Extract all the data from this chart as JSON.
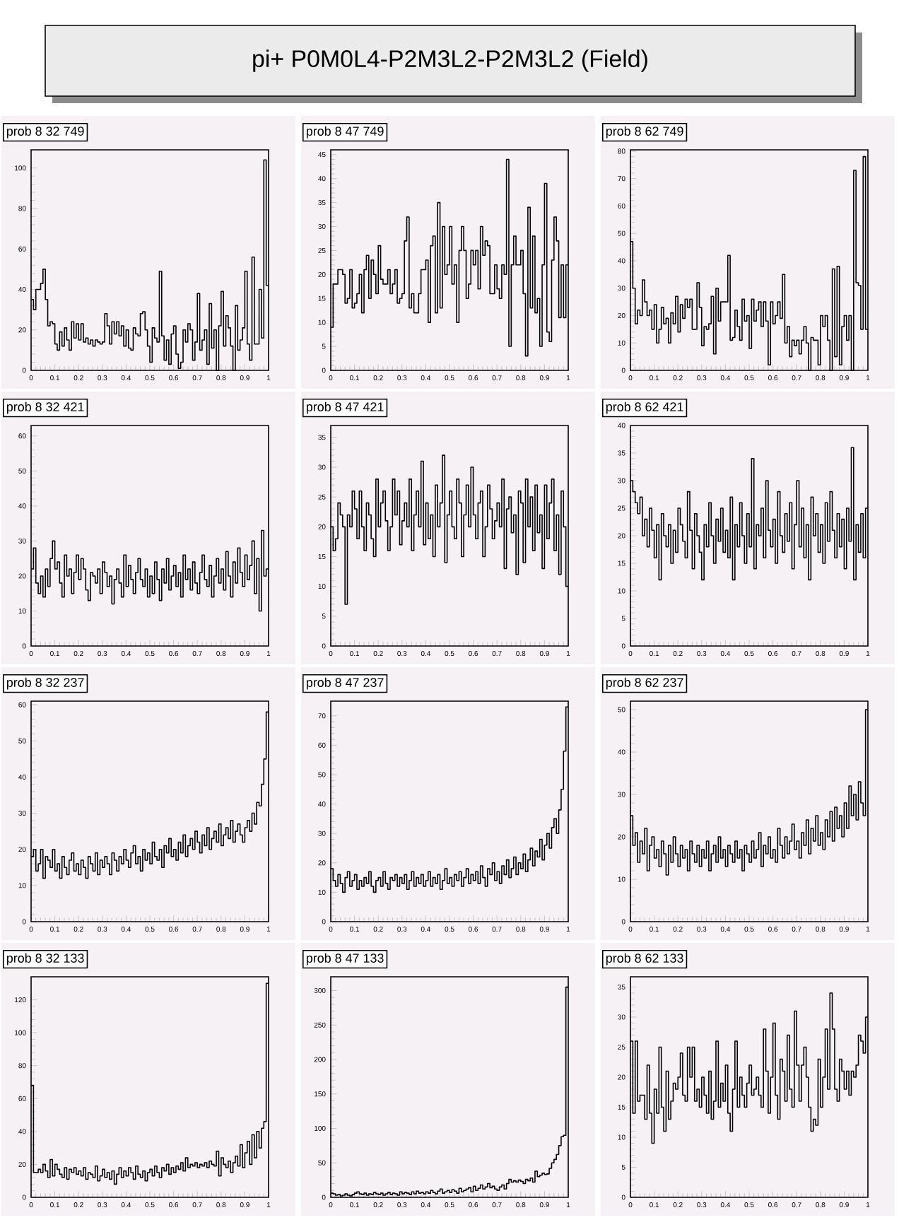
{
  "chart_data": [
    {
      "type": "other",
      "title": "pi+ P0M0L4-P2M3L2-P2M3L2 (Field)"
    },
    {
      "type": "histogram",
      "title": "prob 8 32 749",
      "color": "#000000",
      "xlim": [
        0,
        1
      ],
      "xticks": [
        0,
        0.1,
        0.2,
        0.3,
        0.4,
        0.5,
        0.6,
        0.7,
        0.8,
        0.9,
        1
      ],
      "ylim": [
        0,
        109
      ],
      "yticks": [
        0,
        20,
        40,
        60,
        80,
        100
      ],
      "bins": [
        0,
        0.01,
        0.02,
        0.03,
        0.04,
        0.05,
        0.06,
        0.07,
        0.08,
        0.09,
        0.1,
        0.11,
        0.12,
        0.13,
        0.14,
        0.15,
        0.16,
        0.17,
        0.18,
        0.19,
        0.2,
        0.21,
        0.22,
        0.23,
        0.24,
        0.25,
        0.26,
        0.27,
        0.28,
        0.29,
        0.3,
        0.31,
        0.32,
        0.33,
        0.34,
        0.35,
        0.36,
        0.37,
        0.38,
        0.39,
        0.4,
        0.41,
        0.42,
        0.43,
        0.44,
        0.45,
        0.46,
        0.47,
        0.48,
        0.49,
        0.5,
        0.51,
        0.52,
        0.53,
        0.54,
        0.55,
        0.56,
        0.57,
        0.58,
        0.59,
        0.6,
        0.61,
        0.62,
        0.63,
        0.64,
        0.65,
        0.66,
        0.67,
        0.68,
        0.69,
        0.7,
        0.71,
        0.72,
        0.73,
        0.74,
        0.75,
        0.76,
        0.77,
        0.78,
        0.79,
        0.8,
        0.81,
        0.82,
        0.83,
        0.84,
        0.85,
        0.86,
        0.87,
        0.88,
        0.89,
        0.9,
        0.91,
        0.92,
        0.93,
        0.94,
        0.95,
        0.96,
        0.97,
        0.98,
        0.99,
        1
      ],
      "values": [
        35,
        30,
        40,
        40,
        43,
        50,
        35,
        22,
        24,
        23,
        13,
        10,
        19,
        12,
        21,
        15,
        10,
        24,
        16,
        23,
        15,
        23,
        14,
        16,
        13,
        15,
        12,
        15,
        14,
        13,
        14,
        28,
        22,
        13,
        24,
        18,
        24,
        17,
        22,
        12,
        20,
        11,
        10,
        21,
        18,
        17,
        28,
        29,
        20,
        12,
        4,
        21,
        16,
        14,
        49,
        17,
        5,
        15,
        3,
        18,
        22,
        8,
        1,
        4,
        20,
        14,
        23,
        20,
        5,
        14,
        38,
        10,
        15,
        20,
        3,
        33,
        11,
        20,
        0,
        22,
        39,
        12,
        27,
        21,
        12,
        0,
        32,
        10,
        15,
        21,
        49,
        13,
        5,
        56,
        13,
        13,
        40,
        16,
        104,
        42
      ]
    },
    {
      "type": "histogram",
      "title": "prob 8 47 749",
      "color": "#000000",
      "xlim": [
        0,
        1
      ],
      "xticks": [
        0,
        0.1,
        0.2,
        0.3,
        0.4,
        0.5,
        0.6,
        0.7,
        0.8,
        0.9,
        1
      ],
      "ylim": [
        0,
        46
      ],
      "yticks": [
        0,
        5,
        10,
        15,
        20,
        25,
        30,
        35,
        40,
        45
      ],
      "bins": [
        0,
        0.01,
        0.02,
        0.03,
        0.04,
        0.05,
        0.06,
        0.07,
        0.08,
        0.09,
        0.1,
        0.11,
        0.12,
        0.13,
        0.14,
        0.15,
        0.16,
        0.17,
        0.18,
        0.19,
        0.2,
        0.21,
        0.22,
        0.23,
        0.24,
        0.25,
        0.26,
        0.27,
        0.28,
        0.29,
        0.3,
        0.31,
        0.32,
        0.33,
        0.34,
        0.35,
        0.36,
        0.37,
        0.38,
        0.39,
        0.4,
        0.41,
        0.42,
        0.43,
        0.44,
        0.45,
        0.46,
        0.47,
        0.48,
        0.49,
        0.5,
        0.51,
        0.52,
        0.53,
        0.54,
        0.55,
        0.56,
        0.57,
        0.58,
        0.59,
        0.6,
        0.61,
        0.62,
        0.63,
        0.64,
        0.65,
        0.66,
        0.67,
        0.68,
        0.69,
        0.7,
        0.71,
        0.72,
        0.73,
        0.74,
        0.75,
        0.76,
        0.77,
        0.78,
        0.79,
        0.8,
        0.81,
        0.82,
        0.83,
        0.84,
        0.85,
        0.86,
        0.87,
        0.88,
        0.89,
        0.9,
        0.91,
        0.92,
        0.93,
        0.94,
        0.95,
        0.96,
        0.97,
        0.98,
        0.99,
        1
      ],
      "values": [
        9,
        18,
        18,
        21,
        21,
        20,
        14,
        15,
        21,
        13,
        14,
        16,
        20,
        12,
        21,
        24,
        15,
        23,
        20,
        16,
        26,
        19,
        18,
        18,
        21,
        16,
        18,
        21,
        14,
        15,
        16,
        27,
        32,
        13,
        16,
        12,
        12,
        16,
        21,
        21,
        23,
        10,
        26,
        28,
        12,
        35,
        13,
        30,
        20,
        22,
        30,
        18,
        22,
        10,
        25,
        30,
        25,
        15,
        18,
        25,
        22,
        25,
        17,
        30,
        24,
        27,
        26,
        16,
        16,
        22,
        17,
        15,
        22,
        20,
        44,
        5,
        22,
        28,
        22,
        22,
        25,
        16,
        3,
        34,
        13,
        28,
        12,
        15,
        5,
        22,
        39,
        8,
        6,
        23,
        32,
        27,
        11,
        22,
        11,
        22
      ]
    },
    {
      "type": "histogram",
      "title": "prob 8 62 749",
      "color": "#000000",
      "xlim": [
        0,
        1
      ],
      "xticks": [
        0,
        0.1,
        0.2,
        0.3,
        0.4,
        0.5,
        0.6,
        0.7,
        0.8,
        0.9,
        1
      ],
      "ylim": [
        0,
        80.5
      ],
      "yticks": [
        0,
        10,
        20,
        30,
        40,
        50,
        60,
        70,
        80
      ],
      "bins": [
        0,
        0.01,
        0.02,
        0.03,
        0.04,
        0.05,
        0.06,
        0.07,
        0.08,
        0.09,
        0.1,
        0.11,
        0.12,
        0.13,
        0.14,
        0.15,
        0.16,
        0.17,
        0.18,
        0.19,
        0.2,
        0.21,
        0.22,
        0.23,
        0.24,
        0.25,
        0.26,
        0.27,
        0.28,
        0.29,
        0.3,
        0.31,
        0.32,
        0.33,
        0.34,
        0.35,
        0.36,
        0.37,
        0.38,
        0.39,
        0.4,
        0.41,
        0.42,
        0.43,
        0.44,
        0.45,
        0.46,
        0.47,
        0.48,
        0.49,
        0.5,
        0.51,
        0.52,
        0.53,
        0.54,
        0.55,
        0.56,
        0.57,
        0.58,
        0.59,
        0.6,
        0.61,
        0.62,
        0.63,
        0.64,
        0.65,
        0.66,
        0.67,
        0.68,
        0.69,
        0.7,
        0.71,
        0.72,
        0.73,
        0.74,
        0.75,
        0.76,
        0.77,
        0.78,
        0.79,
        0.8,
        0.81,
        0.82,
        0.83,
        0.84,
        0.85,
        0.86,
        0.87,
        0.88,
        0.89,
        0.9,
        0.91,
        0.92,
        0.93,
        0.94,
        0.95,
        0.96,
        0.97,
        0.98,
        0.99,
        1
      ],
      "values": [
        47,
        30,
        17,
        22,
        20,
        33,
        25,
        20,
        22,
        15,
        24,
        10,
        15,
        23,
        17,
        19,
        10,
        21,
        17,
        27,
        14,
        24,
        19,
        26,
        23,
        26,
        15,
        15,
        32,
        23,
        9,
        16,
        15,
        17,
        27,
        6,
        30,
        18,
        25,
        25,
        25,
        42,
        11,
        12,
        22,
        16,
        11,
        26,
        18,
        20,
        8,
        26,
        18,
        22,
        25,
        16,
        25,
        18,
        2,
        25,
        17,
        20,
        25,
        19,
        35,
        10,
        16,
        5,
        11,
        9,
        11,
        6,
        11,
        16,
        10,
        0,
        12,
        11,
        11,
        2,
        20,
        16,
        20,
        11,
        0,
        37,
        5,
        38,
        2,
        16,
        20,
        11,
        20,
        0,
        73,
        32,
        31,
        15,
        78,
        15
      ]
    },
    {
      "type": "histogram",
      "title": "prob 8 32 421",
      "color": "#000000",
      "xlim": [
        0,
        1
      ],
      "xticks": [
        0,
        0.1,
        0.2,
        0.3,
        0.4,
        0.5,
        0.6,
        0.7,
        0.8,
        0.9,
        1
      ],
      "ylim": [
        0,
        63
      ],
      "yticks": [
        0,
        10,
        20,
        30,
        40,
        50,
        60
      ],
      "bins": [
        0,
        0.01,
        0.02,
        0.03,
        0.04,
        0.05,
        0.06,
        0.07,
        0.08,
        0.09,
        0.1,
        0.11,
        0.12,
        0.13,
        0.14,
        0.15,
        0.16,
        0.17,
        0.18,
        0.19,
        0.2,
        0.21,
        0.22,
        0.23,
        0.24,
        0.25,
        0.26,
        0.27,
        0.28,
        0.29,
        0.3,
        0.31,
        0.32,
        0.33,
        0.34,
        0.35,
        0.36,
        0.37,
        0.38,
        0.39,
        0.4,
        0.41,
        0.42,
        0.43,
        0.44,
        0.45,
        0.46,
        0.47,
        0.48,
        0.49,
        0.5,
        0.51,
        0.52,
        0.53,
        0.54,
        0.55,
        0.56,
        0.57,
        0.58,
        0.59,
        0.6,
        0.61,
        0.62,
        0.63,
        0.64,
        0.65,
        0.66,
        0.67,
        0.68,
        0.69,
        0.7,
        0.71,
        0.72,
        0.73,
        0.74,
        0.75,
        0.76,
        0.77,
        0.78,
        0.79,
        0.8,
        0.81,
        0.82,
        0.83,
        0.84,
        0.85,
        0.86,
        0.87,
        0.88,
        0.89,
        0.9,
        0.91,
        0.92,
        0.93,
        0.94,
        0.95,
        0.96,
        0.97,
        0.98,
        0.99,
        1
      ],
      "values": [
        22,
        28,
        18,
        15,
        20,
        14,
        22,
        17,
        25,
        30,
        22,
        24,
        18,
        14,
        26,
        20,
        22,
        15,
        21,
        26,
        19,
        25,
        22,
        16,
        13,
        21,
        20,
        18,
        22,
        15,
        24,
        21,
        17,
        20,
        12,
        19,
        22,
        18,
        14,
        26,
        17,
        23,
        19,
        15,
        21,
        25,
        19,
        17,
        22,
        14,
        20,
        15,
        24,
        19,
        13,
        22,
        18,
        25,
        16,
        20,
        23,
        17,
        21,
        14,
        26,
        19,
        22,
        16,
        24,
        18,
        15,
        21,
        26,
        19,
        17,
        23,
        14,
        20,
        25,
        18,
        22,
        16,
        27,
        20,
        14,
        24,
        18,
        28,
        21,
        17,
        26,
        19,
        23,
        30,
        15,
        25,
        10,
        33,
        20,
        22
      ]
    },
    {
      "type": "histogram",
      "title": "prob 8 47 421",
      "color": "#000000",
      "xlim": [
        0,
        1
      ],
      "xticks": [
        0,
        0.1,
        0.2,
        0.3,
        0.4,
        0.5,
        0.6,
        0.7,
        0.8,
        0.9,
        1
      ],
      "ylim": [
        0,
        37
      ],
      "yticks": [
        0,
        5,
        10,
        15,
        20,
        25,
        30,
        35
      ],
      "bins": [
        0,
        0.01,
        0.02,
        0.03,
        0.04,
        0.05,
        0.06,
        0.07,
        0.08,
        0.09,
        0.1,
        0.11,
        0.12,
        0.13,
        0.14,
        0.15,
        0.16,
        0.17,
        0.18,
        0.19,
        0.2,
        0.21,
        0.22,
        0.23,
        0.24,
        0.25,
        0.26,
        0.27,
        0.28,
        0.29,
        0.3,
        0.31,
        0.32,
        0.33,
        0.34,
        0.35,
        0.36,
        0.37,
        0.38,
        0.39,
        0.4,
        0.41,
        0.42,
        0.43,
        0.44,
        0.45,
        0.46,
        0.47,
        0.48,
        0.49,
        0.5,
        0.51,
        0.52,
        0.53,
        0.54,
        0.55,
        0.56,
        0.57,
        0.58,
        0.59,
        0.6,
        0.61,
        0.62,
        0.63,
        0.64,
        0.65,
        0.66,
        0.67,
        0.68,
        0.69,
        0.7,
        0.71,
        0.72,
        0.73,
        0.74,
        0.75,
        0.76,
        0.77,
        0.78,
        0.79,
        0.8,
        0.81,
        0.82,
        0.83,
        0.84,
        0.85,
        0.86,
        0.87,
        0.88,
        0.89,
        0.9,
        0.91,
        0.92,
        0.93,
        0.94,
        0.95,
        0.96,
        0.97,
        0.98,
        0.99,
        1
      ],
      "values": [
        20,
        16,
        18,
        24,
        22,
        20,
        7,
        22,
        20,
        26,
        23,
        18,
        26,
        20,
        16,
        24,
        22,
        18,
        15,
        28,
        20,
        24,
        26,
        21,
        16,
        20,
        28,
        22,
        26,
        17,
        21,
        24,
        20,
        28,
        16,
        22,
        26,
        20,
        31,
        17,
        24,
        18,
        22,
        15,
        27,
        20,
        24,
        32,
        14,
        22,
        26,
        20,
        18,
        28,
        24,
        15,
        22,
        27,
        20,
        30,
        22,
        18,
        24,
        26,
        15,
        20,
        27,
        23,
        18,
        21,
        24,
        20,
        28,
        13,
        23,
        25,
        19,
        22,
        12,
        26,
        24,
        14,
        28,
        20,
        25,
        16,
        27,
        19,
        22,
        13,
        27,
        18,
        24,
        28,
        16,
        22,
        12,
        26,
        20,
        10
      ]
    },
    {
      "type": "histogram",
      "title": "prob 8 62 421",
      "color": "#000000",
      "xlim": [
        0,
        1
      ],
      "xticks": [
        0,
        0.1,
        0.2,
        0.3,
        0.4,
        0.5,
        0.6,
        0.7,
        0.8,
        0.9,
        1
      ],
      "ylim": [
        0,
        40
      ],
      "yticks": [
        0,
        5,
        10,
        15,
        20,
        25,
        30,
        35,
        40
      ],
      "bins": [
        0,
        0.01,
        0.02,
        0.03,
        0.04,
        0.05,
        0.06,
        0.07,
        0.08,
        0.09,
        0.1,
        0.11,
        0.12,
        0.13,
        0.14,
        0.15,
        0.16,
        0.17,
        0.18,
        0.19,
        0.2,
        0.21,
        0.22,
        0.23,
        0.24,
        0.25,
        0.26,
        0.27,
        0.28,
        0.29,
        0.3,
        0.31,
        0.32,
        0.33,
        0.34,
        0.35,
        0.36,
        0.37,
        0.38,
        0.39,
        0.4,
        0.41,
        0.42,
        0.43,
        0.44,
        0.45,
        0.46,
        0.47,
        0.48,
        0.49,
        0.5,
        0.51,
        0.52,
        0.53,
        0.54,
        0.55,
        0.56,
        0.57,
        0.58,
        0.59,
        0.6,
        0.61,
        0.62,
        0.63,
        0.64,
        0.65,
        0.66,
        0.67,
        0.68,
        0.69,
        0.7,
        0.71,
        0.72,
        0.73,
        0.74,
        0.75,
        0.76,
        0.77,
        0.78,
        0.79,
        0.8,
        0.81,
        0.82,
        0.83,
        0.84,
        0.85,
        0.86,
        0.87,
        0.88,
        0.89,
        0.9,
        0.91,
        0.92,
        0.93,
        0.94,
        0.95,
        0.96,
        0.97,
        0.98,
        0.99,
        1
      ],
      "values": [
        30,
        28,
        26,
        24,
        27,
        20,
        23,
        18,
        25,
        21,
        16,
        22,
        12,
        24,
        20,
        18,
        22,
        15,
        21,
        17,
        25,
        22,
        19,
        16,
        28,
        21,
        14,
        24,
        20,
        17,
        12,
        22,
        18,
        26,
        20,
        15,
        23,
        19,
        25,
        17,
        21,
        16,
        27,
        12,
        22,
        18,
        26,
        20,
        15,
        24,
        18,
        34,
        14,
        22,
        20,
        25,
        16,
        30,
        21,
        18,
        23,
        15,
        28,
        20,
        17,
        24,
        19,
        26,
        14,
        22,
        30,
        18,
        25,
        16,
        22,
        12,
        27,
        20,
        24,
        17,
        22,
        15,
        26,
        19,
        28,
        21,
        16,
        24,
        18,
        23,
        14,
        25,
        19,
        36,
        12,
        22,
        17,
        24,
        16,
        25
      ]
    },
    {
      "type": "histogram",
      "title": "prob 8 32 237",
      "color": "#000000",
      "xlim": [
        0,
        1
      ],
      "xticks": [
        0,
        0.1,
        0.2,
        0.3,
        0.4,
        0.5,
        0.6,
        0.7,
        0.8,
        0.9,
        1
      ],
      "ylim": [
        0,
        61
      ],
      "yticks": [
        0,
        10,
        20,
        30,
        40,
        50,
        60
      ],
      "bins": [
        0,
        0.01,
        0.02,
        0.03,
        0.04,
        0.05,
        0.06,
        0.07,
        0.08,
        0.09,
        0.1,
        0.11,
        0.12,
        0.13,
        0.14,
        0.15,
        0.16,
        0.17,
        0.18,
        0.19,
        0.2,
        0.21,
        0.22,
        0.23,
        0.24,
        0.25,
        0.26,
        0.27,
        0.28,
        0.29,
        0.3,
        0.31,
        0.32,
        0.33,
        0.34,
        0.35,
        0.36,
        0.37,
        0.38,
        0.39,
        0.4,
        0.41,
        0.42,
        0.43,
        0.44,
        0.45,
        0.46,
        0.47,
        0.48,
        0.49,
        0.5,
        0.51,
        0.52,
        0.53,
        0.54,
        0.55,
        0.56,
        0.57,
        0.58,
        0.59,
        0.6,
        0.61,
        0.62,
        0.63,
        0.64,
        0.65,
        0.66,
        0.67,
        0.68,
        0.69,
        0.7,
        0.71,
        0.72,
        0.73,
        0.74,
        0.75,
        0.76,
        0.77,
        0.78,
        0.79,
        0.8,
        0.81,
        0.82,
        0.83,
        0.84,
        0.85,
        0.86,
        0.87,
        0.88,
        0.89,
        0.9,
        0.91,
        0.92,
        0.93,
        0.94,
        0.95,
        0.96,
        0.97,
        0.98,
        0.99,
        1
      ],
      "values": [
        18,
        20,
        14,
        16,
        20,
        12,
        18,
        17,
        15,
        20,
        14,
        16,
        12,
        18,
        15,
        13,
        17,
        19,
        14,
        16,
        13,
        17,
        15,
        12,
        18,
        16,
        14,
        19,
        13,
        17,
        15,
        18,
        16,
        13,
        19,
        17,
        14,
        18,
        16,
        20,
        17,
        15,
        19,
        21,
        16,
        18,
        14,
        20,
        17,
        19,
        16,
        22,
        18,
        17,
        20,
        15,
        21,
        19,
        23,
        18,
        20,
        17,
        22,
        19,
        24,
        18,
        21,
        23,
        20,
        25,
        22,
        19,
        24,
        21,
        26,
        20,
        23,
        25,
        22,
        27,
        21,
        24,
        26,
        23,
        28,
        22,
        25,
        27,
        24,
        22,
        26,
        28,
        25,
        30,
        27,
        33,
        32,
        38,
        45,
        58
      ]
    },
    {
      "type": "histogram",
      "title": "prob 8 47 237",
      "color": "#000000",
      "xlim": [
        0,
        1
      ],
      "xticks": [
        0,
        0.1,
        0.2,
        0.3,
        0.4,
        0.5,
        0.6,
        0.7,
        0.8,
        0.9,
        1
      ],
      "ylim": [
        0,
        75
      ],
      "yticks": [
        0,
        10,
        20,
        30,
        40,
        50,
        60,
        70
      ],
      "bins": [
        0,
        0.01,
        0.02,
        0.03,
        0.04,
        0.05,
        0.06,
        0.07,
        0.08,
        0.09,
        0.1,
        0.11,
        0.12,
        0.13,
        0.14,
        0.15,
        0.16,
        0.17,
        0.18,
        0.19,
        0.2,
        0.21,
        0.22,
        0.23,
        0.24,
        0.25,
        0.26,
        0.27,
        0.28,
        0.29,
        0.3,
        0.31,
        0.32,
        0.33,
        0.34,
        0.35,
        0.36,
        0.37,
        0.38,
        0.39,
        0.4,
        0.41,
        0.42,
        0.43,
        0.44,
        0.45,
        0.46,
        0.47,
        0.48,
        0.49,
        0.5,
        0.51,
        0.52,
        0.53,
        0.54,
        0.55,
        0.56,
        0.57,
        0.58,
        0.59,
        0.6,
        0.61,
        0.62,
        0.63,
        0.64,
        0.65,
        0.66,
        0.67,
        0.68,
        0.69,
        0.7,
        0.71,
        0.72,
        0.73,
        0.74,
        0.75,
        0.76,
        0.77,
        0.78,
        0.79,
        0.8,
        0.81,
        0.82,
        0.83,
        0.84,
        0.85,
        0.86,
        0.87,
        0.88,
        0.89,
        0.9,
        0.91,
        0.92,
        0.93,
        0.94,
        0.95,
        0.96,
        0.97,
        0.98,
        0.99,
        1
      ],
      "values": [
        18,
        14,
        12,
        16,
        13,
        10,
        15,
        17,
        12,
        14,
        16,
        11,
        14,
        12,
        15,
        13,
        17,
        12,
        10,
        14,
        15,
        12,
        17,
        13,
        11,
        15,
        14,
        16,
        12,
        15,
        13,
        16,
        11,
        14,
        17,
        12,
        15,
        13,
        16,
        12,
        14,
        17,
        12,
        15,
        13,
        16,
        11,
        14,
        18,
        13,
        15,
        12,
        16,
        14,
        17,
        12,
        15,
        18,
        13,
        16,
        14,
        17,
        13,
        19,
        15,
        12,
        18,
        16,
        20,
        14,
        17,
        13,
        19,
        16,
        21,
        15,
        18,
        22,
        16,
        20,
        18,
        23,
        17,
        21,
        25,
        19,
        24,
        22,
        28,
        21,
        26,
        30,
        25,
        32,
        35,
        30,
        38,
        45,
        58,
        73
      ]
    },
    {
      "type": "histogram",
      "title": "prob 8 62 237",
      "color": "#000000",
      "xlim": [
        0,
        1
      ],
      "xticks": [
        0,
        0.1,
        0.2,
        0.3,
        0.4,
        0.5,
        0.6,
        0.7,
        0.8,
        0.9,
        1
      ],
      "ylim": [
        0,
        52
      ],
      "yticks": [
        0,
        10,
        20,
        30,
        40,
        50
      ],
      "bins": [
        0,
        0.01,
        0.02,
        0.03,
        0.04,
        0.05,
        0.06,
        0.07,
        0.08,
        0.09,
        0.1,
        0.11,
        0.12,
        0.13,
        0.14,
        0.15,
        0.16,
        0.17,
        0.18,
        0.19,
        0.2,
        0.21,
        0.22,
        0.23,
        0.24,
        0.25,
        0.26,
        0.27,
        0.28,
        0.29,
        0.3,
        0.31,
        0.32,
        0.33,
        0.34,
        0.35,
        0.36,
        0.37,
        0.38,
        0.39,
        0.4,
        0.41,
        0.42,
        0.43,
        0.44,
        0.45,
        0.46,
        0.47,
        0.48,
        0.49,
        0.5,
        0.51,
        0.52,
        0.53,
        0.54,
        0.55,
        0.56,
        0.57,
        0.58,
        0.59,
        0.6,
        0.61,
        0.62,
        0.63,
        0.64,
        0.65,
        0.66,
        0.67,
        0.68,
        0.69,
        0.7,
        0.71,
        0.72,
        0.73,
        0.74,
        0.75,
        0.76,
        0.77,
        0.78,
        0.79,
        0.8,
        0.81,
        0.82,
        0.83,
        0.84,
        0.85,
        0.86,
        0.87,
        0.88,
        0.89,
        0.9,
        0.91,
        0.92,
        0.93,
        0.94,
        0.95,
        0.96,
        0.97,
        0.98,
        0.99,
        1
      ],
      "values": [
        25,
        18,
        21,
        14,
        19,
        16,
        22,
        12,
        18,
        20,
        15,
        17,
        13,
        19,
        16,
        11,
        18,
        14,
        20,
        16,
        13,
        18,
        15,
        17,
        12,
        19,
        16,
        14,
        18,
        13,
        17,
        15,
        19,
        12,
        16,
        18,
        14,
        20,
        15,
        17,
        13,
        18,
        16,
        14,
        19,
        15,
        17,
        12,
        18,
        16,
        14,
        19,
        15,
        17,
        21,
        13,
        18,
        16,
        20,
        15,
        17,
        14,
        22,
        18,
        15,
        20,
        16,
        19,
        23,
        17,
        19,
        15,
        21,
        18,
        24,
        16,
        22,
        19,
        25,
        18,
        21,
        17,
        24,
        20,
        26,
        19,
        27,
        22,
        25,
        20,
        28,
        22,
        32,
        25,
        30,
        24,
        33,
        28,
        25,
        50
      ]
    },
    {
      "type": "histogram",
      "title": "prob 8 32 133",
      "color": "#000000",
      "xlim": [
        0,
        1
      ],
      "xticks": [
        0,
        0.1,
        0.2,
        0.3,
        0.4,
        0.5,
        0.6,
        0.7,
        0.8,
        0.9,
        1
      ],
      "ylim": [
        0,
        134
      ],
      "yticks": [
        0,
        20,
        40,
        60,
        80,
        100,
        120
      ],
      "bins": [
        0,
        0.01,
        0.02,
        0.03,
        0.04,
        0.05,
        0.06,
        0.07,
        0.08,
        0.09,
        0.1,
        0.11,
        0.12,
        0.13,
        0.14,
        0.15,
        0.16,
        0.17,
        0.18,
        0.19,
        0.2,
        0.21,
        0.22,
        0.23,
        0.24,
        0.25,
        0.26,
        0.27,
        0.28,
        0.29,
        0.3,
        0.31,
        0.32,
        0.33,
        0.34,
        0.35,
        0.36,
        0.37,
        0.38,
        0.39,
        0.4,
        0.41,
        0.42,
        0.43,
        0.44,
        0.45,
        0.46,
        0.47,
        0.48,
        0.49,
        0.5,
        0.51,
        0.52,
        0.53,
        0.54,
        0.55,
        0.56,
        0.57,
        0.58,
        0.59,
        0.6,
        0.61,
        0.62,
        0.63,
        0.64,
        0.65,
        0.66,
        0.67,
        0.68,
        0.69,
        0.7,
        0.71,
        0.72,
        0.73,
        0.74,
        0.75,
        0.76,
        0.77,
        0.78,
        0.79,
        0.8,
        0.81,
        0.82,
        0.83,
        0.84,
        0.85,
        0.86,
        0.87,
        0.88,
        0.89,
        0.9,
        0.91,
        0.92,
        0.93,
        0.94,
        0.95,
        0.96,
        0.97,
        0.98,
        0.99,
        1
      ],
      "values": [
        68,
        15,
        15,
        17,
        15,
        20,
        16,
        12,
        23,
        13,
        20,
        17,
        14,
        12,
        18,
        11,
        17,
        15,
        18,
        14,
        16,
        13,
        18,
        11,
        15,
        14,
        12,
        19,
        10,
        13,
        17,
        12,
        15,
        11,
        16,
        8,
        14,
        18,
        12,
        16,
        13,
        18,
        15,
        11,
        19,
        14,
        12,
        16,
        10,
        15,
        17,
        13,
        19,
        15,
        12,
        18,
        16,
        20,
        14,
        18,
        15,
        19,
        17,
        21,
        16,
        24,
        18,
        20,
        19,
        21,
        18,
        20,
        19,
        21,
        18,
        22,
        20,
        19,
        28,
        13,
        24,
        20,
        18,
        22,
        15,
        21,
        25,
        19,
        32,
        18,
        27,
        34,
        20,
        38,
        24,
        40,
        30,
        42,
        46,
        130
      ]
    },
    {
      "type": "histogram",
      "title": "prob 8 47 133",
      "color": "#000000",
      "xlim": [
        0,
        1
      ],
      "xticks": [
        0,
        0.1,
        0.2,
        0.3,
        0.4,
        0.5,
        0.6,
        0.7,
        0.8,
        0.9,
        1
      ],
      "ylim": [
        0,
        320
      ],
      "yticks": [
        0,
        50,
        100,
        150,
        200,
        250,
        300
      ],
      "bins": [
        0,
        0.01,
        0.02,
        0.03,
        0.04,
        0.05,
        0.06,
        0.07,
        0.08,
        0.09,
        0.1,
        0.11,
        0.12,
        0.13,
        0.14,
        0.15,
        0.16,
        0.17,
        0.18,
        0.19,
        0.2,
        0.21,
        0.22,
        0.23,
        0.24,
        0.25,
        0.26,
        0.27,
        0.28,
        0.29,
        0.3,
        0.31,
        0.32,
        0.33,
        0.34,
        0.35,
        0.36,
        0.37,
        0.38,
        0.39,
        0.4,
        0.41,
        0.42,
        0.43,
        0.44,
        0.45,
        0.46,
        0.47,
        0.48,
        0.49,
        0.5,
        0.51,
        0.52,
        0.53,
        0.54,
        0.55,
        0.56,
        0.57,
        0.58,
        0.59,
        0.6,
        0.61,
        0.62,
        0.63,
        0.64,
        0.65,
        0.66,
        0.67,
        0.68,
        0.69,
        0.7,
        0.71,
        0.72,
        0.73,
        0.74,
        0.75,
        0.76,
        0.77,
        0.78,
        0.79,
        0.8,
        0.81,
        0.82,
        0.83,
        0.84,
        0.85,
        0.86,
        0.87,
        0.88,
        0.89,
        0.9,
        0.91,
        0.92,
        0.93,
        0.94,
        0.95,
        0.96,
        0.97,
        0.98,
        0.99,
        1
      ],
      "values": [
        6,
        5,
        3,
        4,
        2,
        3,
        5,
        3,
        2,
        4,
        6,
        8,
        5,
        4,
        6,
        3,
        5,
        4,
        7,
        5,
        4,
        6,
        3,
        5,
        7,
        4,
        6,
        5,
        3,
        8,
        5,
        7,
        6,
        4,
        8,
        5,
        9,
        6,
        7,
        5,
        8,
        6,
        10,
        7,
        5,
        9,
        12,
        6,
        8,
        10,
        7,
        11,
        9,
        6,
        13,
        8,
        10,
        12,
        14,
        8,
        16,
        10,
        13,
        18,
        12,
        15,
        20,
        14,
        16,
        12,
        10,
        15,
        18,
        12,
        20,
        26,
        22,
        24,
        22,
        25,
        23,
        20,
        26,
        24,
        28,
        22,
        38,
        30,
        32,
        35,
        33,
        34,
        42,
        50,
        55,
        62,
        75,
        88,
        90,
        305
      ]
    },
    {
      "type": "histogram",
      "title": "prob 8 62 133",
      "color": "#000000",
      "xlim": [
        0,
        1
      ],
      "xticks": [
        0,
        0.1,
        0.2,
        0.3,
        0.4,
        0.5,
        0.6,
        0.7,
        0.8,
        0.9,
        1
      ],
      "ylim": [
        0,
        36.7
      ],
      "yticks": [
        0,
        5,
        10,
        15,
        20,
        25,
        30,
        35
      ],
      "bins": [
        0,
        0.01,
        0.02,
        0.03,
        0.04,
        0.05,
        0.06,
        0.07,
        0.08,
        0.09,
        0.1,
        0.11,
        0.12,
        0.13,
        0.14,
        0.15,
        0.16,
        0.17,
        0.18,
        0.19,
        0.2,
        0.21,
        0.22,
        0.23,
        0.24,
        0.25,
        0.26,
        0.27,
        0.28,
        0.29,
        0.3,
        0.31,
        0.32,
        0.33,
        0.34,
        0.35,
        0.36,
        0.37,
        0.38,
        0.39,
        0.4,
        0.41,
        0.42,
        0.43,
        0.44,
        0.45,
        0.46,
        0.47,
        0.48,
        0.49,
        0.5,
        0.51,
        0.52,
        0.53,
        0.54,
        0.55,
        0.56,
        0.57,
        0.58,
        0.59,
        0.6,
        0.61,
        0.62,
        0.63,
        0.64,
        0.65,
        0.66,
        0.67,
        0.68,
        0.69,
        0.7,
        0.71,
        0.72,
        0.73,
        0.74,
        0.75,
        0.76,
        0.77,
        0.78,
        0.79,
        0.8,
        0.81,
        0.82,
        0.83,
        0.84,
        0.85,
        0.86,
        0.87,
        0.88,
        0.89,
        0.9,
        0.91,
        0.92,
        0.93,
        0.94,
        0.95,
        0.96,
        0.97,
        0.98,
        0.99,
        1
      ],
      "values": [
        26,
        14,
        26,
        16,
        17,
        17,
        13,
        22,
        14,
        9,
        18,
        14,
        25,
        15,
        11,
        21,
        13,
        16,
        19,
        18,
        20,
        24,
        17,
        16,
        25,
        20,
        25,
        16,
        18,
        15,
        20,
        17,
        14,
        21,
        13,
        16,
        26,
        15,
        19,
        16,
        22,
        14,
        11,
        18,
        26,
        15,
        20,
        17,
        15,
        19,
        22,
        17,
        18,
        20,
        17,
        15,
        28,
        21,
        14,
        20,
        29,
        17,
        13,
        23,
        21,
        16,
        27,
        18,
        15,
        31,
        22,
        16,
        22,
        25,
        20,
        15,
        11,
        13,
        12,
        23,
        15,
        20,
        28,
        18,
        34,
        28,
        18,
        16,
        23,
        21,
        18,
        21,
        17,
        21,
        20,
        22,
        27,
        26,
        24,
        30
      ]
    }
  ]
}
